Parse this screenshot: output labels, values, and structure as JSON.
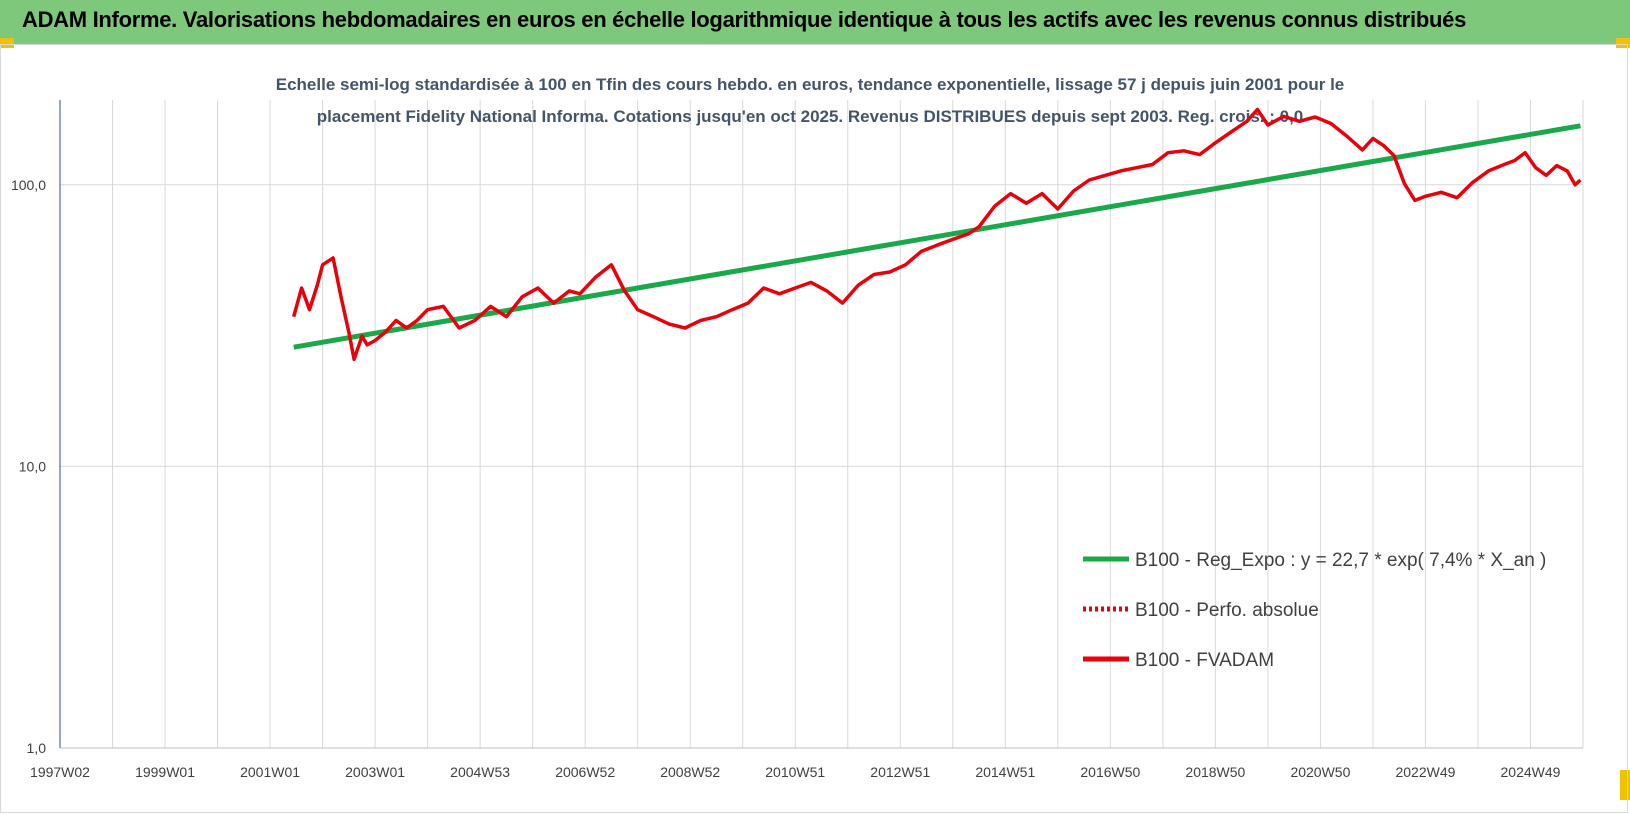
{
  "header": {
    "title": "ADAM Informe. Valorisations hebdomadaires en euros en échelle logarithmique identique à tous les actifs avec les revenus connus distribués"
  },
  "colors": {
    "header_bg": "#7dc87a",
    "trend": "#1aa84a",
    "price": "#e8000b",
    "grid": "#d9d9d9",
    "text": "#404040",
    "accent_corner": "#f2c200"
  },
  "chart_data": {
    "type": "line",
    "title_line1": "Echelle semi-log standardisée à 100 en Tfin des cours hebdo. en euros, tendance exponentielle, lissage 57 j depuis juin 2001 pour le",
    "title_line2": "placement Fidelity National Informa. Cotations jusqu'en oct 2025. Revenus DISTRIBUES depuis sept 2003. Reg. crois. : 0,0",
    "y_scale": "log",
    "ylim": [
      1,
      200
    ],
    "y_ticks": [
      "1,0",
      "10,0",
      "100,0"
    ],
    "x_ticks": [
      "1997W02",
      "1999W01",
      "2001W01",
      "2003W01",
      "2004W53",
      "2006W52",
      "2008W52",
      "2010W51",
      "2012W51",
      "2014W51",
      "2016W50",
      "2018W50",
      "2020W50",
      "2022W49",
      "2024W49"
    ],
    "xlim": [
      1997.0,
      2026.0
    ],
    "grid": "vertical and horizontal",
    "legend_position": "right-middle",
    "series": [
      {
        "name": "B100 - Reg_Expo : y = 22,7 * exp( 7,4% *  X_an )",
        "style": "solid",
        "color": "#1aa84a",
        "x": [
          2001.45,
          2025.95
        ],
        "y": [
          26.5,
          162
        ]
      },
      {
        "name": "B100 - Perfo. absolue",
        "style": "dotted",
        "color": "#e8000b",
        "x": [],
        "y": []
      },
      {
        "name": "B100 - FVADAM",
        "style": "solid",
        "color": "#e8000b",
        "x": [
          2001.45,
          2001.6,
          2001.75,
          2001.9,
          2002.0,
          2002.2,
          2002.35,
          2002.5,
          2002.6,
          2002.75,
          2002.85,
          2003.0,
          2003.2,
          2003.4,
          2003.6,
          2003.8,
          2004.0,
          2004.3,
          2004.6,
          2004.9,
          2005.2,
          2005.5,
          2005.8,
          2006.1,
          2006.4,
          2006.7,
          2006.9,
          2007.2,
          2007.5,
          2007.75,
          2008.0,
          2008.3,
          2008.6,
          2008.9,
          2009.2,
          2009.5,
          2009.8,
          2010.1,
          2010.4,
          2010.7,
          2011.0,
          2011.3,
          2011.6,
          2011.9,
          2012.2,
          2012.5,
          2012.8,
          2013.1,
          2013.4,
          2013.7,
          2014.0,
          2014.3,
          2014.5,
          2014.8,
          2015.1,
          2015.4,
          2015.7,
          2016.0,
          2016.3,
          2016.6,
          2016.9,
          2017.2,
          2017.5,
          2017.8,
          2018.1,
          2018.4,
          2018.7,
          2019.0,
          2019.3,
          2019.6,
          2019.8,
          2020.0,
          2020.3,
          2020.6,
          2020.9,
          2021.2,
          2021.5,
          2021.8,
          2022.0,
          2022.2,
          2022.4,
          2022.6,
          2022.8,
          2023.0,
          2023.3,
          2023.6,
          2023.9,
          2024.2,
          2024.5,
          2024.7,
          2024.9,
          2025.1,
          2025.3,
          2025.5,
          2025.7,
          2025.85,
          2025.95
        ],
        "y": [
          34,
          43,
          36,
          44,
          52,
          55,
          40,
          30,
          24,
          29,
          27,
          28,
          30,
          33,
          31,
          33,
          36,
          37,
          31,
          33,
          37,
          34,
          40,
          43,
          38,
          42,
          41,
          47,
          52,
          42,
          36,
          34,
          32,
          31,
          33,
          34,
          36,
          38,
          43,
          41,
          43,
          45,
          42,
          38,
          44,
          48,
          49,
          52,
          58,
          61,
          64,
          67,
          71,
          84,
          93,
          86,
          93,
          82,
          95,
          104,
          108,
          112,
          115,
          118,
          130,
          132,
          128,
          141,
          154,
          168,
          185,
          163,
          175,
          168,
          174,
          165,
          149,
          133,
          146,
          138,
          127,
          101,
          88,
          91,
          94,
          90,
          102,
          112,
          118,
          122,
          130,
          115,
          108,
          117,
          112,
          100,
          104
        ]
      }
    ]
  }
}
